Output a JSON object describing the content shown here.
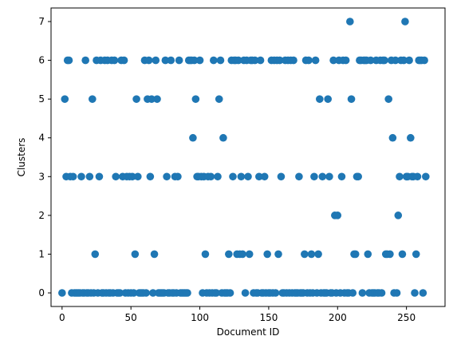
{
  "chart_data": {
    "type": "scatter",
    "xlabel": "Document ID",
    "ylabel": "Clusters",
    "xlim": [
      -8,
      278
    ],
    "ylim": [
      -0.35,
      7.35
    ],
    "xticks": [
      0,
      50,
      100,
      150,
      200,
      250
    ],
    "yticks": [
      0,
      1,
      2,
      3,
      4,
      5,
      6,
      7
    ],
    "grid": false,
    "marker_color": "#1f77b4",
    "points": [
      [
        0,
        0
      ],
      [
        2,
        5
      ],
      [
        3,
        3
      ],
      [
        4,
        6
      ],
      [
        5,
        6
      ],
      [
        6,
        3
      ],
      [
        7,
        0
      ],
      [
        8,
        3
      ],
      [
        9,
        0
      ],
      [
        10,
        0
      ],
      [
        11,
        0
      ],
      [
        12,
        0
      ],
      [
        13,
        0
      ],
      [
        14,
        3
      ],
      [
        15,
        0
      ],
      [
        16,
        0
      ],
      [
        17,
        6
      ],
      [
        18,
        0
      ],
      [
        19,
        0
      ],
      [
        20,
        3
      ],
      [
        21,
        0
      ],
      [
        22,
        5
      ],
      [
        23,
        0
      ],
      [
        24,
        1
      ],
      [
        25,
        6
      ],
      [
        26,
        0
      ],
      [
        27,
        3
      ],
      [
        28,
        6
      ],
      [
        29,
        0
      ],
      [
        30,
        0
      ],
      [
        31,
        6
      ],
      [
        32,
        0
      ],
      [
        33,
        6
      ],
      [
        34,
        0
      ],
      [
        35,
        0
      ],
      [
        36,
        6
      ],
      [
        37,
        0
      ],
      [
        38,
        6
      ],
      [
        39,
        3
      ],
      [
        40,
        0
      ],
      [
        41,
        0
      ],
      [
        42,
        0
      ],
      [
        43,
        6
      ],
      [
        44,
        3
      ],
      [
        45,
        6
      ],
      [
        46,
        0
      ],
      [
        47,
        3
      ],
      [
        48,
        0
      ],
      [
        49,
        3
      ],
      [
        50,
        0
      ],
      [
        51,
        3
      ],
      [
        52,
        0
      ],
      [
        53,
        1
      ],
      [
        54,
        5
      ],
      [
        55,
        3
      ],
      [
        56,
        0
      ],
      [
        57,
        0
      ],
      [
        58,
        0
      ],
      [
        59,
        0
      ],
      [
        60,
        6
      ],
      [
        61,
        0
      ],
      [
        62,
        5
      ],
      [
        63,
        6
      ],
      [
        64,
        3
      ],
      [
        65,
        5
      ],
      [
        66,
        0
      ],
      [
        67,
        1
      ],
      [
        68,
        6
      ],
      [
        69,
        5
      ],
      [
        70,
        0
      ],
      [
        71,
        0
      ],
      [
        72,
        0
      ],
      [
        73,
        0
      ],
      [
        74,
        0
      ],
      [
        75,
        6
      ],
      [
        76,
        3
      ],
      [
        77,
        0
      ],
      [
        78,
        0
      ],
      [
        79,
        6
      ],
      [
        80,
        0
      ],
      [
        81,
        0
      ],
      [
        82,
        3
      ],
      [
        83,
        0
      ],
      [
        84,
        3
      ],
      [
        85,
        6
      ],
      [
        86,
        0
      ],
      [
        87,
        0
      ],
      [
        88,
        0
      ],
      [
        89,
        0
      ],
      [
        90,
        0
      ],
      [
        91,
        0
      ],
      [
        92,
        6
      ],
      [
        93,
        6
      ],
      [
        94,
        6
      ],
      [
        95,
        4
      ],
      [
        96,
        6
      ],
      [
        97,
        5
      ],
      [
        98,
        3
      ],
      [
        99,
        3
      ],
      [
        100,
        6
      ],
      [
        101,
        3
      ],
      [
        102,
        0
      ],
      [
        103,
        3
      ],
      [
        104,
        1
      ],
      [
        105,
        0
      ],
      [
        106,
        3
      ],
      [
        107,
        0
      ],
      [
        108,
        3
      ],
      [
        109,
        0
      ],
      [
        110,
        6
      ],
      [
        111,
        0
      ],
      [
        112,
        0
      ],
      [
        113,
        3
      ],
      [
        114,
        5
      ],
      [
        115,
        6
      ],
      [
        116,
        0
      ],
      [
        117,
        4
      ],
      [
        118,
        0
      ],
      [
        119,
        0
      ],
      [
        120,
        0
      ],
      [
        121,
        1
      ],
      [
        122,
        0
      ],
      [
        123,
        6
      ],
      [
        124,
        3
      ],
      [
        125,
        6
      ],
      [
        126,
        6
      ],
      [
        127,
        1
      ],
      [
        128,
        6
      ],
      [
        129,
        1
      ],
      [
        130,
        3
      ],
      [
        131,
        1
      ],
      [
        132,
        6
      ],
      [
        133,
        0
      ],
      [
        134,
        6
      ],
      [
        135,
        3
      ],
      [
        136,
        1
      ],
      [
        137,
        6
      ],
      [
        138,
        6
      ],
      [
        139,
        0
      ],
      [
        140,
        6
      ],
      [
        141,
        0
      ],
      [
        142,
        0
      ],
      [
        143,
        3
      ],
      [
        144,
        6
      ],
      [
        145,
        0
      ],
      [
        146,
        0
      ],
      [
        147,
        3
      ],
      [
        148,
        0
      ],
      [
        149,
        1
      ],
      [
        150,
        0
      ],
      [
        151,
        0
      ],
      [
        152,
        6
      ],
      [
        153,
        0
      ],
      [
        154,
        6
      ],
      [
        155,
        0
      ],
      [
        156,
        6
      ],
      [
        157,
        1
      ],
      [
        158,
        6
      ],
      [
        159,
        3
      ],
      [
        160,
        0
      ],
      [
        161,
        0
      ],
      [
        162,
        6
      ],
      [
        163,
        0
      ],
      [
        164,
        6
      ],
      [
        165,
        0
      ],
      [
        166,
        6
      ],
      [
        167,
        0
      ],
      [
        168,
        6
      ],
      [
        169,
        0
      ],
      [
        170,
        0
      ],
      [
        171,
        0
      ],
      [
        172,
        3
      ],
      [
        173,
        0
      ],
      [
        174,
        0
      ],
      [
        175,
        0
      ],
      [
        176,
        1
      ],
      [
        177,
        6
      ],
      [
        178,
        0
      ],
      [
        179,
        6
      ],
      [
        180,
        0
      ],
      [
        181,
        1
      ],
      [
        182,
        0
      ],
      [
        183,
        3
      ],
      [
        184,
        6
      ],
      [
        185,
        0
      ],
      [
        186,
        1
      ],
      [
        187,
        5
      ],
      [
        188,
        0
      ],
      [
        189,
        3
      ],
      [
        190,
        0
      ],
      [
        191,
        0
      ],
      [
        192,
        0
      ],
      [
        193,
        5
      ],
      [
        194,
        3
      ],
      [
        195,
        0
      ],
      [
        196,
        0
      ],
      [
        197,
        6
      ],
      [
        198,
        2
      ],
      [
        199,
        0
      ],
      [
        200,
        2
      ],
      [
        201,
        6
      ],
      [
        202,
        0
      ],
      [
        203,
        3
      ],
      [
        204,
        6
      ],
      [
        205,
        0
      ],
      [
        206,
        6
      ],
      [
        207,
        0
      ],
      [
        208,
        0
      ],
      [
        209,
        7
      ],
      [
        210,
        5
      ],
      [
        211,
        0
      ],
      [
        212,
        1
      ],
      [
        213,
        1
      ],
      [
        214,
        3
      ],
      [
        215,
        3
      ],
      [
        216,
        6
      ],
      [
        217,
        6
      ],
      [
        218,
        0
      ],
      [
        219,
        6
      ],
      [
        220,
        6
      ],
      [
        221,
        6
      ],
      [
        222,
        1
      ],
      [
        223,
        0
      ],
      [
        224,
        6
      ],
      [
        225,
        0
      ],
      [
        226,
        0
      ],
      [
        227,
        0
      ],
      [
        228,
        6
      ],
      [
        229,
        0
      ],
      [
        230,
        0
      ],
      [
        231,
        6
      ],
      [
        232,
        0
      ],
      [
        233,
        6
      ],
      [
        234,
        6
      ],
      [
        235,
        1
      ],
      [
        236,
        1
      ],
      [
        237,
        5
      ],
      [
        238,
        1
      ],
      [
        239,
        6
      ],
      [
        240,
        4
      ],
      [
        241,
        0
      ],
      [
        242,
        6
      ],
      [
        243,
        0
      ],
      [
        244,
        2
      ],
      [
        245,
        3
      ],
      [
        246,
        6
      ],
      [
        247,
        1
      ],
      [
        248,
        6
      ],
      [
        249,
        7
      ],
      [
        250,
        3
      ],
      [
        251,
        3
      ],
      [
        252,
        6
      ],
      [
        253,
        4
      ],
      [
        254,
        3
      ],
      [
        255,
        3
      ],
      [
        256,
        0
      ],
      [
        257,
        1
      ],
      [
        258,
        3
      ],
      [
        259,
        6
      ],
      [
        260,
        6
      ],
      [
        261,
        6
      ],
      [
        262,
        0
      ],
      [
        263,
        6
      ],
      [
        264,
        3
      ]
    ]
  }
}
